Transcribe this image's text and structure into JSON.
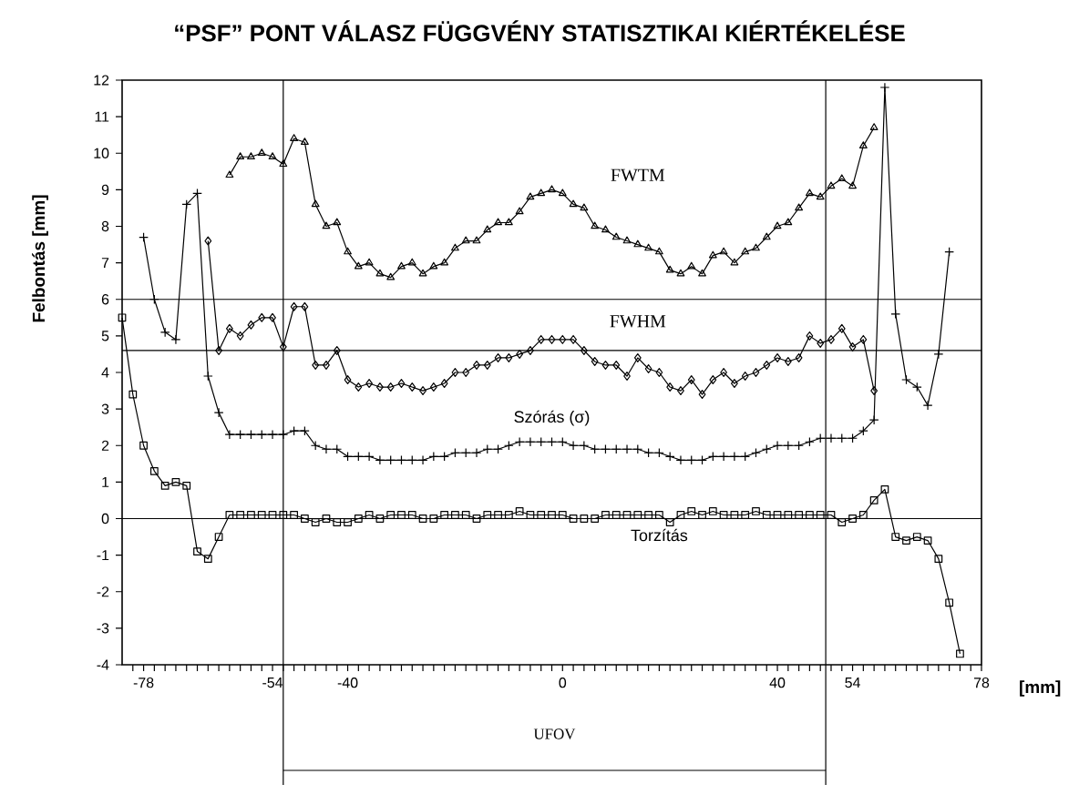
{
  "chart_data": {
    "type": "line",
    "title": "“PSF” PONT VÁLASZ FÜGGVÉNY STATISZTIKAI KIÉRTÉKELÉSE",
    "xlabel": "[mm]",
    "ylabel": "Felbontás [mm]",
    "xlim": [
      -82,
      78
    ],
    "ylim": [
      -4,
      12
    ],
    "xticks": [
      {
        "value": -80,
        "label": null
      },
      -78,
      {
        "value": -76,
        "label": null
      },
      {
        "value": -74,
        "label": null
      },
      {
        "value": -72,
        "label": null
      },
      {
        "value": -70,
        "label": null
      },
      {
        "value": -68,
        "label": null
      },
      {
        "value": -66,
        "label": null
      },
      {
        "value": -64,
        "label": null
      },
      {
        "value": -62,
        "label": null
      },
      {
        "value": -60,
        "label": null
      },
      {
        "value": -58,
        "label": null
      },
      {
        "value": -56,
        "label": null
      },
      -54,
      {
        "value": -52,
        "label": null
      },
      {
        "value": -50,
        "label": null
      },
      {
        "value": -48,
        "label": null
      },
      {
        "value": -46,
        "label": null
      },
      {
        "value": -44,
        "label": null
      },
      {
        "value": -42,
        "label": null
      },
      -40,
      {
        "value": -38,
        "label": null
      },
      {
        "value": -36,
        "label": null
      },
      {
        "value": -34,
        "label": null
      },
      {
        "value": -32,
        "label": null
      },
      {
        "value": -30,
        "label": null
      },
      {
        "value": -28,
        "label": null
      },
      {
        "value": -26,
        "label": null
      },
      {
        "value": -24,
        "label": null
      },
      {
        "value": -22,
        "label": null
      },
      {
        "value": -20,
        "label": null
      },
      {
        "value": -18,
        "label": null
      },
      {
        "value": -16,
        "label": null
      },
      {
        "value": -14,
        "label": null
      },
      {
        "value": -12,
        "label": null
      },
      {
        "value": -10,
        "label": null
      },
      {
        "value": -8,
        "label": null
      },
      {
        "value": -6,
        "label": null
      },
      {
        "value": -4,
        "label": null
      },
      {
        "value": -2,
        "label": null
      },
      0,
      {
        "value": 2,
        "label": null
      },
      {
        "value": 4,
        "label": null
      },
      {
        "value": 6,
        "label": null
      },
      {
        "value": 8,
        "label": null
      },
      {
        "value": 10,
        "label": null
      },
      {
        "value": 12,
        "label": null
      },
      {
        "value": 14,
        "label": null
      },
      {
        "value": 16,
        "label": null
      },
      {
        "value": 18,
        "label": null
      },
      {
        "value": 20,
        "label": null
      },
      {
        "value": 22,
        "label": null
      },
      {
        "value": 24,
        "label": null
      },
      {
        "value": 26,
        "label": null
      },
      {
        "value": 28,
        "label": null
      },
      {
        "value": 30,
        "label": null
      },
      {
        "value": 32,
        "label": null
      },
      {
        "value": 34,
        "label": null
      },
      {
        "value": 36,
        "label": null
      },
      {
        "value": 38,
        "label": null
      },
      40,
      {
        "value": 42,
        "label": null
      },
      {
        "value": 44,
        "label": null
      },
      {
        "value": 46,
        "label": null
      },
      {
        "value": 48,
        "label": null
      },
      {
        "value": 50,
        "label": null
      },
      {
        "value": 52,
        "label": null
      },
      54,
      {
        "value": 56,
        "label": null
      },
      {
        "value": 58,
        "label": null
      },
      {
        "value": 60,
        "label": null
      },
      {
        "value": 62,
        "label": null
      },
      {
        "value": 64,
        "label": null
      },
      {
        "value": 66,
        "label": null
      },
      {
        "value": 68,
        "label": null
      },
      {
        "value": 70,
        "label": null
      },
      {
        "value": 72,
        "label": null
      },
      {
        "value": 74,
        "label": null
      },
      {
        "value": 76,
        "label": null
      },
      78
    ],
    "yticks": [
      -4,
      -3,
      -2,
      -1,
      0,
      1,
      2,
      3,
      4,
      5,
      6,
      7,
      8,
      9,
      10,
      11,
      12
    ],
    "ref_lines": [
      {
        "axis": "y",
        "value": 6
      },
      {
        "axis": "y",
        "value": 4.6
      },
      {
        "axis": "y",
        "value": 0
      },
      {
        "axis": "x",
        "value": -52
      },
      {
        "axis": "x",
        "value": 49
      }
    ],
    "annotations": [
      "UFOV"
    ],
    "series": [
      {
        "name": "FWTM",
        "color": "#000000",
        "marker": "triangle",
        "x": [
          -62,
          -60,
          -58,
          -56,
          -54,
          -52,
          -50,
          -48,
          -46,
          -44,
          -42,
          -40,
          -38,
          -36,
          -34,
          -32,
          -30,
          -28,
          -26,
          -24,
          -22,
          -20,
          -18,
          -16,
          -14,
          -12,
          -10,
          -8,
          -6,
          -4,
          -2,
          0,
          2,
          4,
          6,
          8,
          10,
          12,
          14,
          16,
          18,
          20,
          22,
          24,
          26,
          28,
          30,
          32,
          34,
          36,
          38,
          40,
          42,
          44,
          46,
          48,
          50,
          52,
          54,
          56,
          58
        ],
        "values": [
          9.4,
          9.9,
          9.9,
          10.0,
          9.9,
          9.7,
          10.4,
          10.3,
          8.6,
          8.0,
          8.1,
          7.3,
          6.9,
          7.0,
          6.7,
          6.6,
          6.9,
          7.0,
          6.7,
          6.9,
          7.0,
          7.4,
          7.6,
          7.6,
          7.9,
          8.1,
          8.1,
          8.4,
          8.8,
          8.9,
          9.0,
          8.9,
          8.6,
          8.5,
          8.0,
          7.9,
          7.7,
          7.6,
          7.5,
          7.4,
          7.3,
          6.8,
          6.7,
          6.9,
          6.7,
          7.2,
          7.3,
          7.0,
          7.3,
          7.4,
          7.7,
          8.0,
          8.1,
          8.5,
          8.9,
          8.8,
          9.1,
          9.3,
          9.1,
          10.2,
          10.7
        ]
      },
      {
        "name": "FWHM",
        "color": "#000000",
        "marker": "diamond",
        "x": [
          -66,
          -64,
          -62,
          -60,
          -58,
          -56,
          -54,
          -52,
          -50,
          -48,
          -46,
          -44,
          -42,
          -40,
          -38,
          -36,
          -34,
          -32,
          -30,
          -28,
          -26,
          -24,
          -22,
          -20,
          -18,
          -16,
          -14,
          -12,
          -10,
          -8,
          -6,
          -4,
          -2,
          0,
          2,
          4,
          6,
          8,
          10,
          12,
          14,
          16,
          18,
          20,
          22,
          24,
          26,
          28,
          30,
          32,
          34,
          36,
          38,
          40,
          42,
          44,
          46,
          48,
          50,
          52,
          54,
          56,
          58
        ],
        "values": [
          7.6,
          4.6,
          5.2,
          5.0,
          5.3,
          5.5,
          5.5,
          4.7,
          5.8,
          5.8,
          4.2,
          4.2,
          4.6,
          3.8,
          3.6,
          3.7,
          3.6,
          3.6,
          3.7,
          3.6,
          3.5,
          3.6,
          3.7,
          4.0,
          4.0,
          4.2,
          4.2,
          4.4,
          4.4,
          4.5,
          4.6,
          4.9,
          4.9,
          4.9,
          4.9,
          4.6,
          4.3,
          4.2,
          4.2,
          3.9,
          4.4,
          4.1,
          4.0,
          3.6,
          3.5,
          3.8,
          3.4,
          3.8,
          4.0,
          3.7,
          3.9,
          4.0,
          4.2,
          4.4,
          4.3,
          4.4,
          5.0,
          4.8,
          4.9,
          5.2,
          4.7,
          4.9,
          3.5
        ]
      },
      {
        "name": "Szórás (σ)",
        "color": "#000000",
        "marker": "cross",
        "x": [
          -78,
          -76,
          -74,
          -72,
          -70,
          -68,
          -66,
          -64,
          -62,
          -60,
          -58,
          -56,
          -54,
          -52,
          -50,
          -48,
          -46,
          -44,
          -42,
          -40,
          -38,
          -36,
          -34,
          -32,
          -30,
          -28,
          -26,
          -24,
          -22,
          -20,
          -18,
          -16,
          -14,
          -12,
          -10,
          -8,
          -6,
          -4,
          -2,
          0,
          2,
          4,
          6,
          8,
          10,
          12,
          14,
          16,
          18,
          20,
          22,
          24,
          26,
          28,
          30,
          32,
          34,
          36,
          38,
          40,
          42,
          44,
          46,
          48,
          50,
          52,
          54,
          56,
          58,
          60,
          62,
          64,
          66,
          68,
          70,
          72
        ],
        "values": [
          7.7,
          6.0,
          5.1,
          4.9,
          8.6,
          8.9,
          3.9,
          2.9,
          2.3,
          2.3,
          2.3,
          2.3,
          2.3,
          2.3,
          2.4,
          2.4,
          2.0,
          1.9,
          1.9,
          1.7,
          1.7,
          1.7,
          1.6,
          1.6,
          1.6,
          1.6,
          1.6,
          1.7,
          1.7,
          1.8,
          1.8,
          1.8,
          1.9,
          1.9,
          2.0,
          2.1,
          2.1,
          2.1,
          2.1,
          2.1,
          2.0,
          2.0,
          1.9,
          1.9,
          1.9,
          1.9,
          1.9,
          1.8,
          1.8,
          1.7,
          1.6,
          1.6,
          1.6,
          1.7,
          1.7,
          1.7,
          1.7,
          1.8,
          1.9,
          2.0,
          2.0,
          2.0,
          2.1,
          2.2,
          2.2,
          2.2,
          2.2,
          2.4,
          2.7,
          11.8,
          5.6,
          3.8,
          3.6,
          3.1,
          4.5,
          7.3
        ]
      },
      {
        "name": "Torzítás",
        "color": "#000000",
        "marker": "square",
        "x": [
          -82,
          -80,
          -78,
          -76,
          -74,
          -72,
          -70,
          -68,
          -66,
          -64,
          -62,
          -60,
          -58,
          -56,
          -54,
          -52,
          -50,
          -48,
          -46,
          -44,
          -42,
          -40,
          -38,
          -36,
          -34,
          -32,
          -30,
          -28,
          -26,
          -24,
          -22,
          -20,
          -18,
          -16,
          -14,
          -12,
          -10,
          -8,
          -6,
          -4,
          -2,
          0,
          2,
          4,
          6,
          8,
          10,
          12,
          14,
          16,
          18,
          20,
          22,
          24,
          26,
          28,
          30,
          32,
          34,
          36,
          38,
          40,
          42,
          44,
          46,
          48,
          50,
          52,
          54,
          56,
          58,
          60,
          62,
          64,
          66,
          68,
          70,
          72,
          74
        ],
        "values": [
          5.5,
          3.4,
          2.0,
          1.3,
          0.9,
          1.0,
          0.9,
          -0.9,
          -1.1,
          -0.5,
          0.1,
          0.1,
          0.1,
          0.1,
          0.1,
          0.1,
          0.1,
          0.0,
          -0.1,
          0.0,
          -0.1,
          -0.1,
          0.0,
          0.1,
          0.0,
          0.1,
          0.1,
          0.1,
          0.0,
          0.0,
          0.1,
          0.1,
          0.1,
          0.0,
          0.1,
          0.1,
          0.1,
          0.2,
          0.1,
          0.1,
          0.1,
          0.1,
          0.0,
          0.0,
          0.0,
          0.1,
          0.1,
          0.1,
          0.1,
          0.1,
          0.1,
          -0.1,
          0.1,
          0.2,
          0.1,
          0.2,
          0.1,
          0.1,
          0.1,
          0.2,
          0.1,
          0.1,
          0.1,
          0.1,
          0.1,
          0.1,
          0.1,
          -0.1,
          0.0,
          0.1,
          0.5,
          0.8,
          -0.5,
          -0.6,
          -0.5,
          -0.6,
          -1.1,
          -2.3,
          -3.7
        ]
      }
    ]
  }
}
